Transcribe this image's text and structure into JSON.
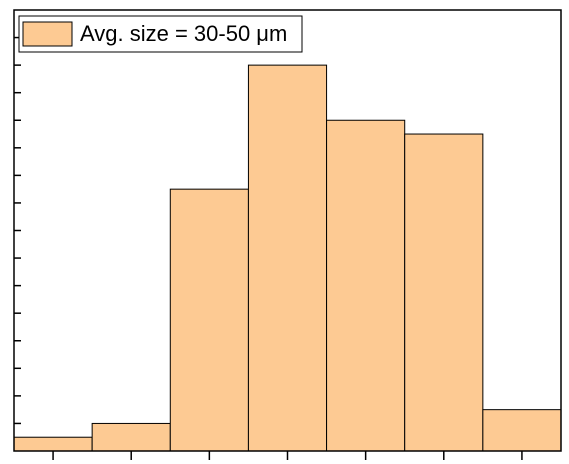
{
  "chart_data": {
    "type": "histogram",
    "bins": [
      0,
      1,
      2,
      3,
      4,
      5,
      6,
      7
    ],
    "series": [
      {
        "name": "Avg. size = 30-50 μm",
        "color": "#fdca93",
        "values": [
          0.5,
          1,
          9.5,
          14,
          12,
          11.5,
          1.5
        ]
      }
    ],
    "xlim": [
      0,
      7
    ],
    "xticks": [
      0.5,
      1.5,
      2.5,
      3.5,
      4.5,
      5.5,
      6.5
    ],
    "ylim": [
      0,
      16
    ],
    "yticks": [
      1,
      2,
      3,
      4,
      5,
      6,
      7,
      8,
      9,
      10,
      11,
      12,
      13,
      14,
      15
    ],
    "legend": "upper left"
  }
}
